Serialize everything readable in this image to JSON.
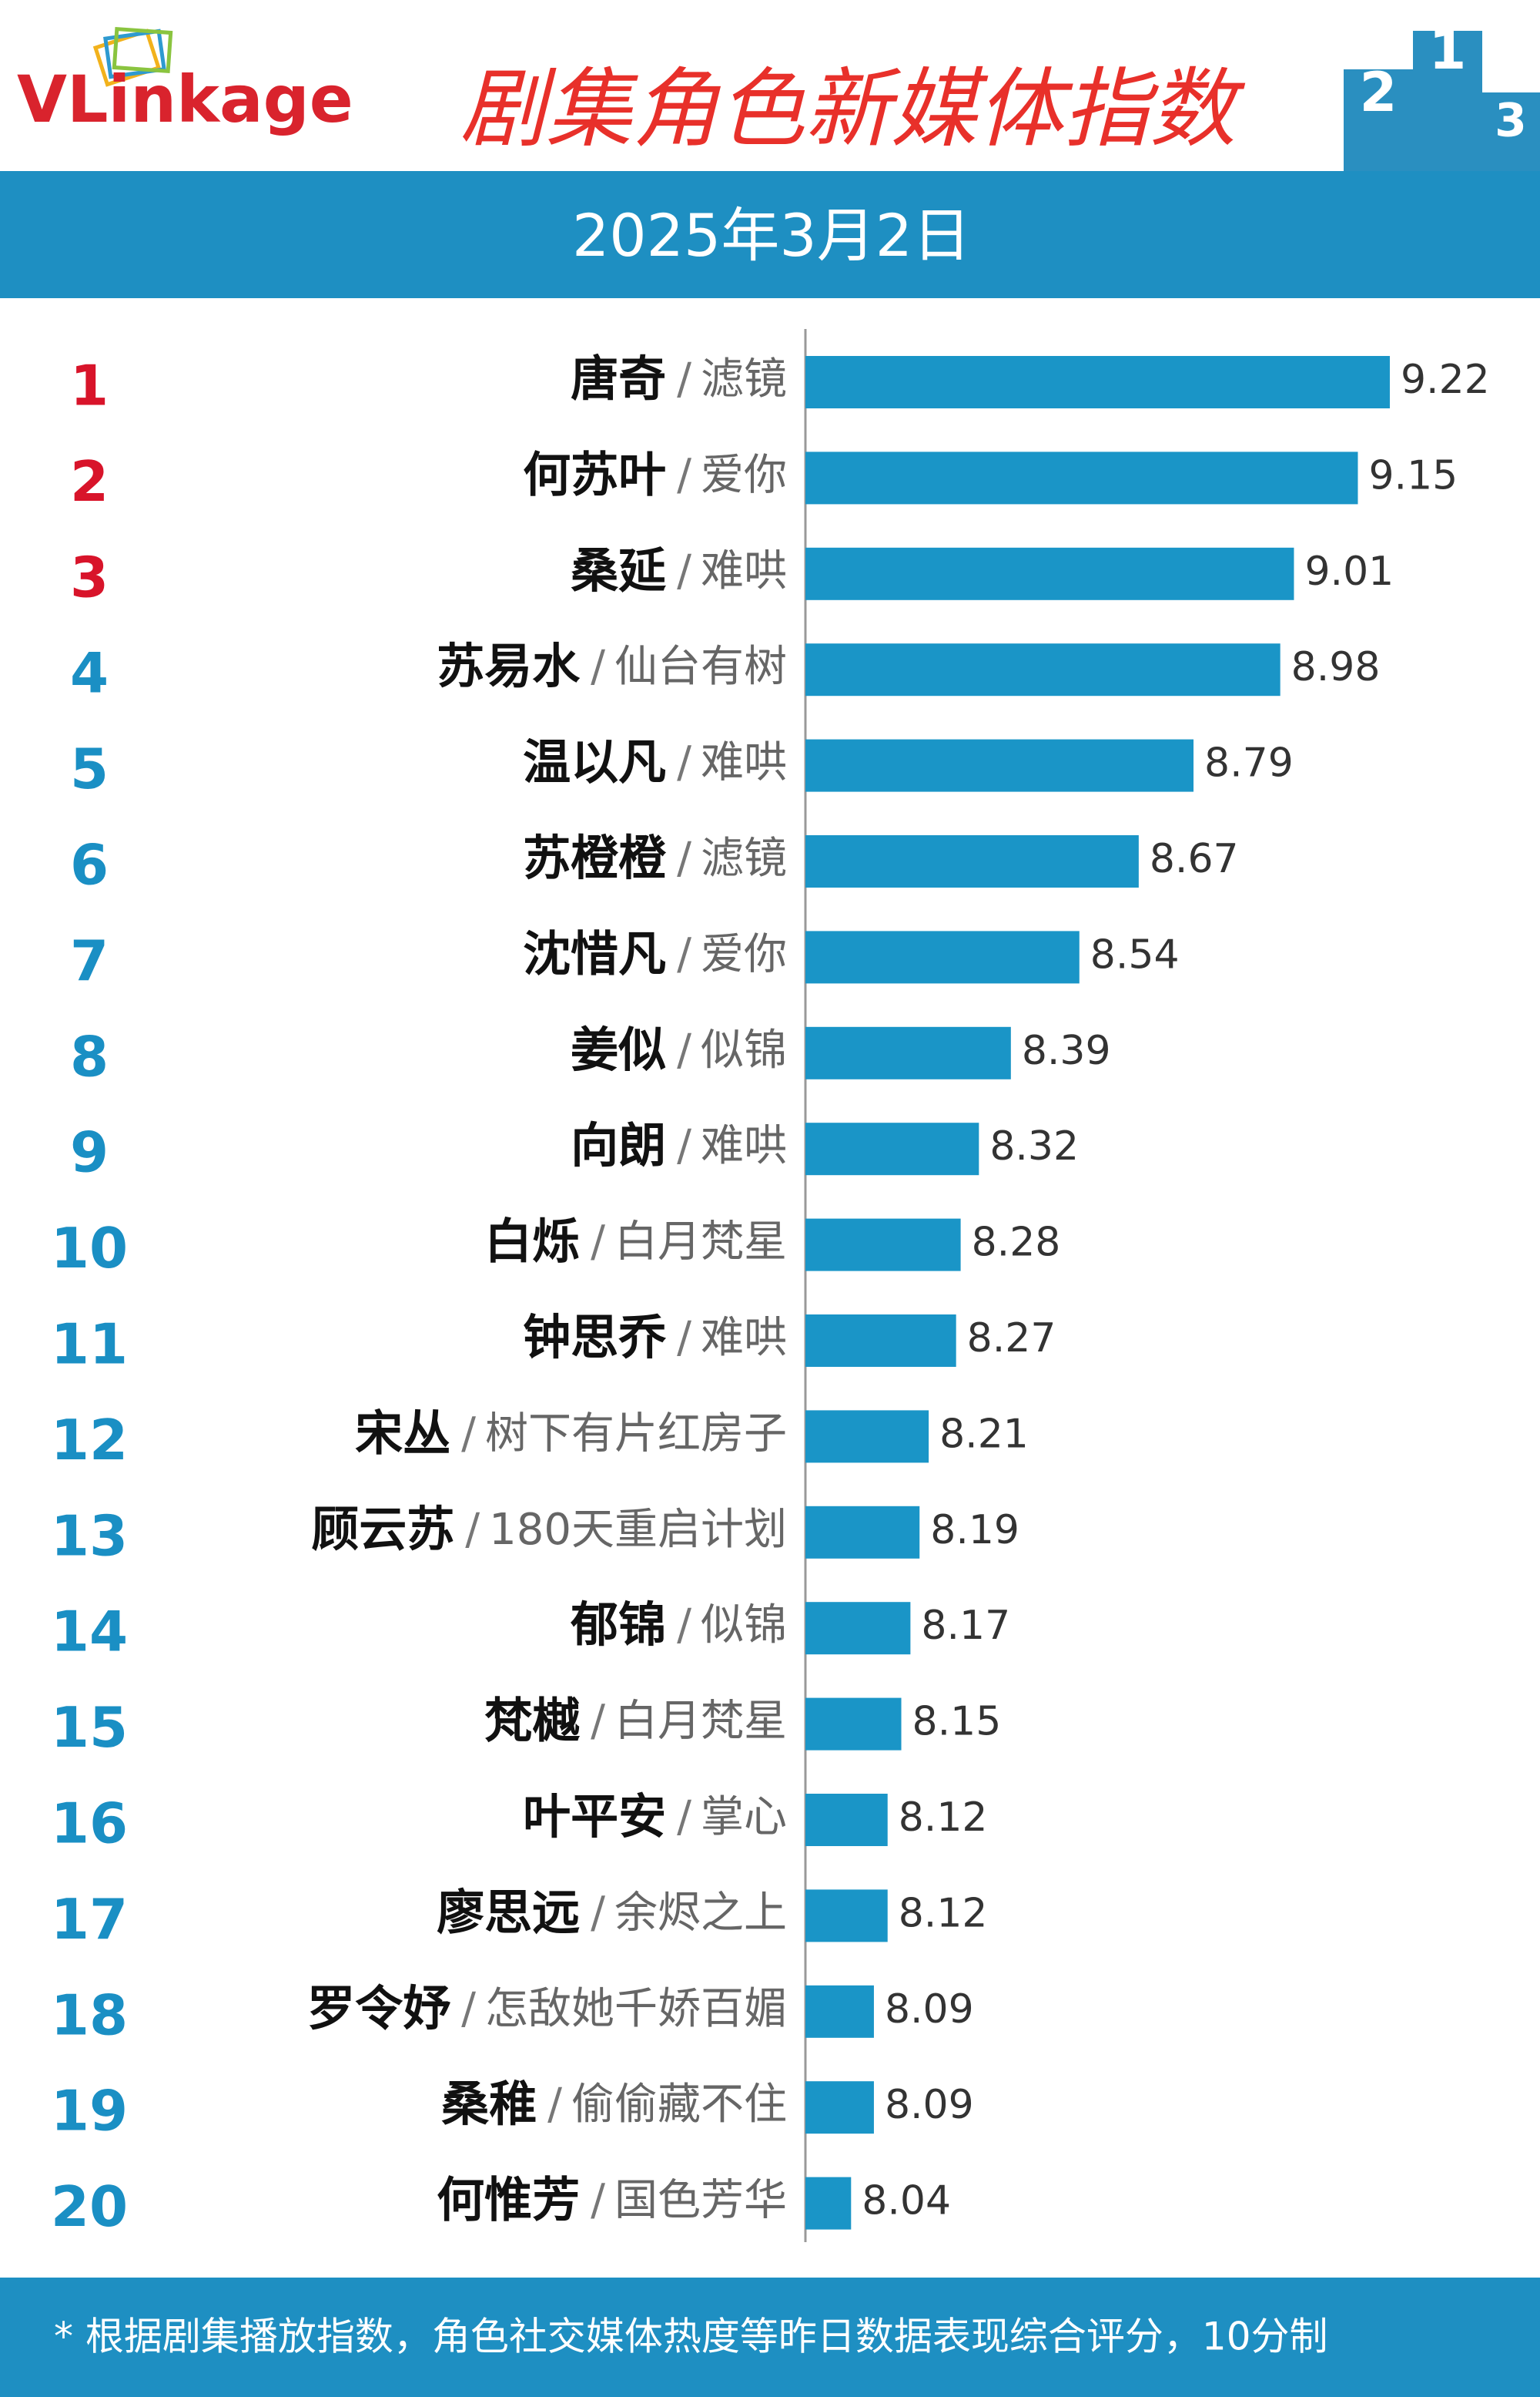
{
  "header": {
    "logo": "VLinkage",
    "title": "剧集角色新媒体指数",
    "podium": [
      "2",
      "1",
      "3"
    ],
    "date": "2025年3月2日"
  },
  "chart_data": {
    "type": "bar",
    "orientation": "horizontal",
    "ranks": [
      1,
      2,
      3,
      4,
      5,
      6,
      7,
      8,
      9,
      10,
      11,
      12,
      13,
      14,
      15,
      16,
      17,
      18,
      19,
      20
    ],
    "categories": [
      "唐奇",
      "何苏叶",
      "桑延",
      "苏易水",
      "温以凡",
      "苏橙橙",
      "沈惜凡",
      "姜似",
      "向朗",
      "白烁",
      "钟思乔",
      "宋丛",
      "顾云苏",
      "郁锦",
      "梵樾",
      "叶平安",
      "廖思远",
      "罗令妤",
      "桑稚",
      "何惟芳"
    ],
    "dramas": [
      "滤镜",
      "爱你",
      "难哄",
      "仙台有树",
      "难哄",
      "滤镜",
      "爱你",
      "似锦",
      "难哄",
      "白月梵星",
      "难哄",
      "树下有片红房子",
      "180天重启计划",
      "似锦",
      "白月梵星",
      "掌心",
      "余烬之上",
      "怎敌她千娇百媚",
      "偷偷藏不住",
      "国色芳华"
    ],
    "separator": "/",
    "values": [
      9.22,
      9.15,
      9.01,
      8.98,
      8.79,
      8.67,
      8.54,
      8.39,
      8.32,
      8.28,
      8.27,
      8.21,
      8.19,
      8.17,
      8.15,
      8.12,
      8.12,
      8.09,
      8.09,
      8.04
    ],
    "color": "#1a95c7",
    "rank_color": "#1a8fc4",
    "top_rank_color": "#d8142a",
    "top_ranks": 3,
    "xlim": [
      7.94,
      9.5
    ]
  },
  "footer": {
    "note": "* 根据剧集播放指数，角色社交媒体热度等昨日数据表现综合评分，10分制"
  }
}
